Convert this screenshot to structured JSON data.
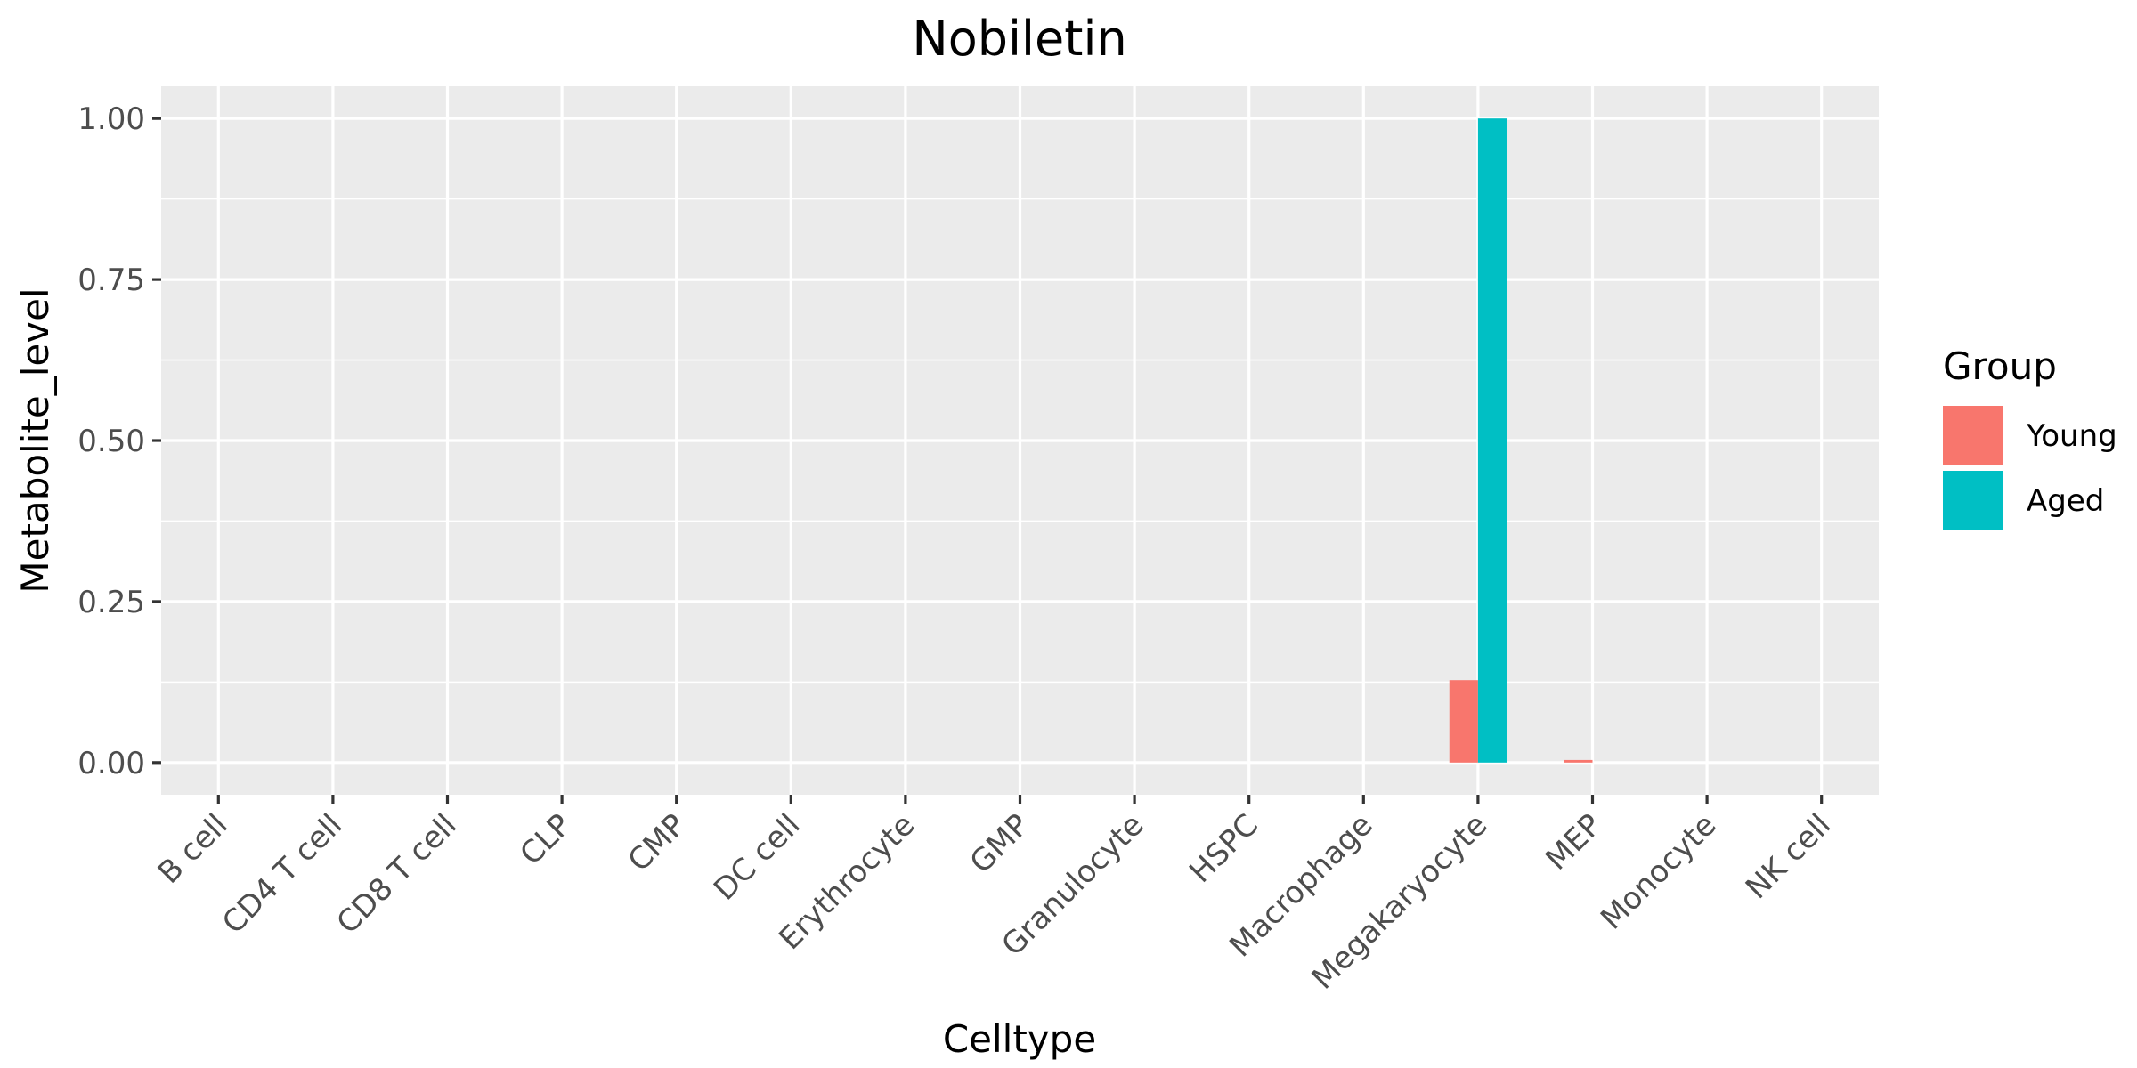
{
  "chart_data": {
    "type": "bar",
    "title": "Nobiletin",
    "xlabel": "Celltype",
    "ylabel": "Metabolite_level",
    "categories": [
      "B cell",
      "CD4 T cell",
      "CD8 T cell",
      "CLP",
      "CMP",
      "DC cell",
      "Erythrocyte",
      "GMP",
      "Granulocyte",
      "HSPC",
      "Macrophage",
      "Megakaryocyte",
      "MEP",
      "Monocyte",
      "NK cell"
    ],
    "series": [
      {
        "name": "Young",
        "color": "#F8766D",
        "values": [
          0,
          0,
          0,
          0,
          0,
          0,
          0,
          0,
          0,
          0,
          0,
          0.128,
          0.004,
          0,
          0
        ]
      },
      {
        "name": "Aged",
        "color": "#00BFC4",
        "values": [
          0,
          0,
          0,
          0,
          0,
          0,
          0,
          0,
          0,
          0,
          0,
          1.0,
          0,
          0,
          0
        ]
      }
    ],
    "ylim": [
      -0.05,
      1.05
    ],
    "yticks": [
      0,
      0.25,
      0.5,
      0.75,
      1.0
    ],
    "ytick_labels": [
      "0.00",
      "0.25",
      "0.50",
      "0.75",
      "1.00"
    ],
    "legend": {
      "title": "Group",
      "position": "right"
    },
    "grid": true
  }
}
